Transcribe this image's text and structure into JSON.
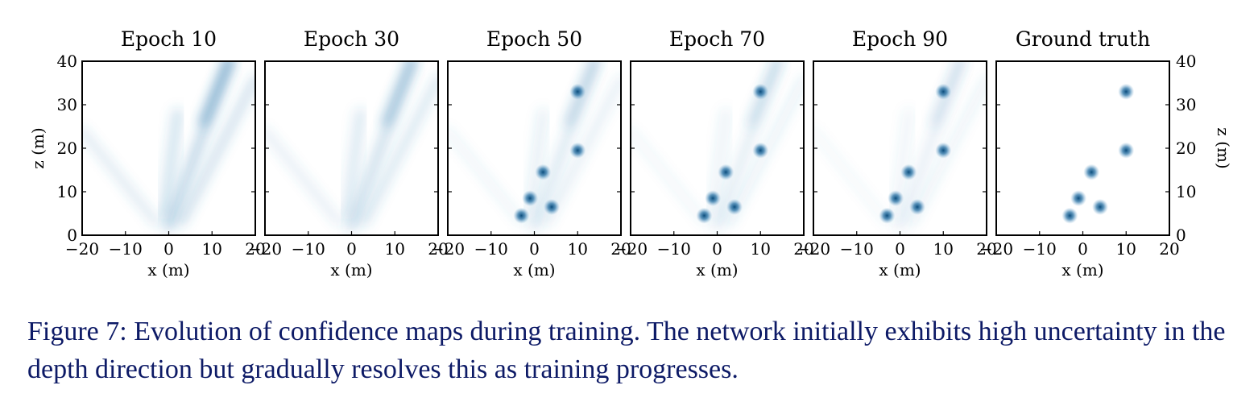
{
  "figure": {
    "panels": [
      {
        "title": "Epoch 10",
        "blob_sigma": 0,
        "streak_strength": 1.0
      },
      {
        "title": "Epoch 30",
        "blob_sigma": 0,
        "streak_strength": 0.8
      },
      {
        "title": "Epoch 50",
        "blob_sigma": 1,
        "streak_strength": 0.55
      },
      {
        "title": "Epoch 70",
        "blob_sigma": 1,
        "streak_strength": 0.45
      },
      {
        "title": "Epoch 90",
        "blob_sigma": 1,
        "streak_strength": 0.38
      },
      {
        "title": "Ground truth",
        "blob_sigma": 1,
        "streak_strength": 0.0
      }
    ],
    "xlabel": "x (m)",
    "ylabel": "z (m)",
    "xticks": [
      "−20",
      "−10",
      "0",
      "10",
      "20"
    ],
    "yticks": [
      "0",
      "10",
      "20",
      "30",
      "40"
    ],
    "xlim": [
      -20,
      20
    ],
    "ylim": [
      0,
      40
    ],
    "sources": [
      {
        "x": -3,
        "z": 4.5
      },
      {
        "x": -1,
        "z": 8.5
      },
      {
        "x": 4,
        "z": 6.5
      },
      {
        "x": 2,
        "z": 14.5
      },
      {
        "x": 10,
        "z": 19.5
      },
      {
        "x": 10,
        "z": 33
      }
    ],
    "colormap": "white-to-blue",
    "accent_color": "#0b4d7d"
  },
  "caption": {
    "text": "Figure 7: Evolution of confidence maps during training. The network initially exhibits high uncertainty in the depth direction but gradually resolves this as training progresses."
  }
}
